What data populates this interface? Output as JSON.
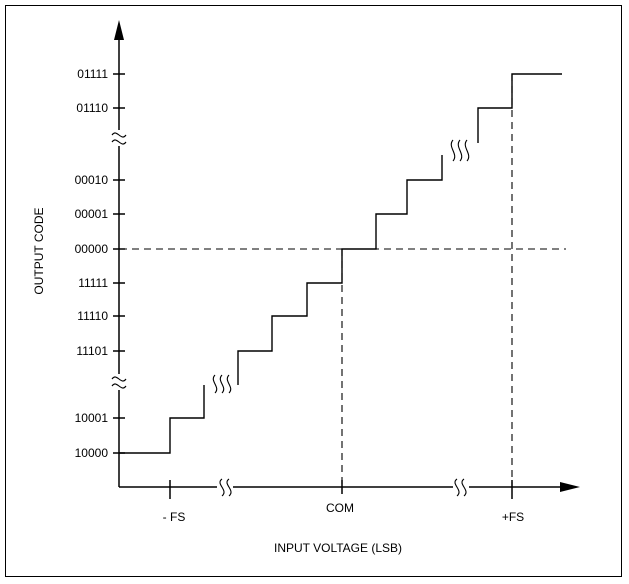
{
  "diagram": {
    "y_axis_label": "OUTPUT CODE",
    "x_axis_label": "INPUT VOLTAGE (LSB)",
    "y_ticks": [
      "01111",
      "01110",
      "00010",
      "00001",
      "00000",
      "11111",
      "11110",
      "11101",
      "10001",
      "10000"
    ],
    "x_ticks": [
      "- FS",
      "COM",
      "+FS"
    ]
  }
}
